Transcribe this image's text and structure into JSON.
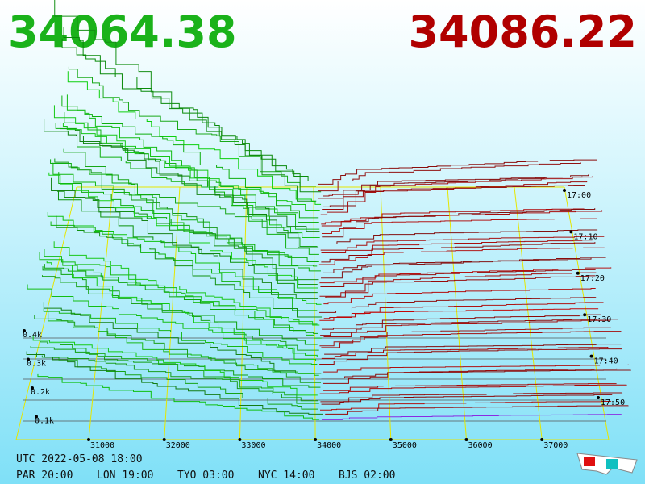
{
  "header": {
    "bid": "34064.38",
    "ask": "34086.22"
  },
  "price_axis": [
    "31000",
    "32000",
    "33000",
    "34000",
    "35000",
    "36000",
    "37000"
  ],
  "time_axis": [
    "17:00",
    "17:10",
    "17:20",
    "17:30",
    "17:40",
    "17:50"
  ],
  "depth_axis": [
    "0.4k",
    "0.3k",
    "0.2k",
    "0.1k"
  ],
  "footer": {
    "utc": "UTC 2022-05-08 18:00",
    "clocks": [
      "PAR 20:00",
      "LON 19:00",
      "TYO 03:00",
      "NYC 14:00",
      "BJS 02:00"
    ]
  }
}
